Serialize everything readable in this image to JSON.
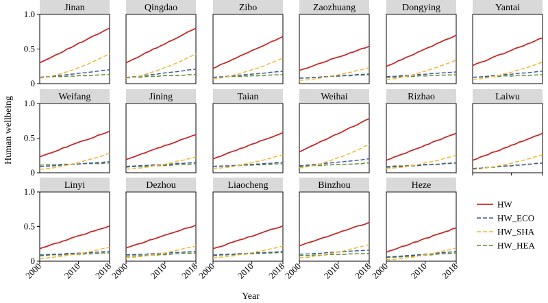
{
  "chart_data": {
    "type": "line",
    "xlabel": "Year",
    "ylabel": "Human wellbeing",
    "xlim": [
      2000,
      2018
    ],
    "ylim": [
      0,
      1.0
    ],
    "x_ticks": [
      2000,
      2010,
      2018
    ],
    "y_ticks": [
      0,
      0.5,
      1.0
    ],
    "y_tick_labels": [
      "0",
      "0.5",
      "1.0"
    ],
    "legend": {
      "placement": "bottom-right"
    },
    "series_styles": [
      {
        "name": "HW",
        "color": "#c62828",
        "dash": ""
      },
      {
        "name": "HW_ECO",
        "color": "#3b5a9d",
        "dash": "6,3"
      },
      {
        "name": "HW_SHA",
        "color": "#f2b630",
        "dash": "6,3"
      },
      {
        "name": "HW_HEA",
        "color": "#5d8a2e",
        "dash": "6,3"
      }
    ],
    "panels": [
      {
        "city": "Jinan",
        "HW": [
          0.3,
          0.8
        ],
        "HW_ECO": [
          0.09,
          0.2
        ],
        "HW_SHA": [
          0.08,
          0.43
        ],
        "HW_HEA": [
          0.09,
          0.13
        ]
      },
      {
        "city": "Qingdao",
        "HW": [
          0.3,
          0.8
        ],
        "HW_ECO": [
          0.09,
          0.21
        ],
        "HW_SHA": [
          0.08,
          0.43
        ],
        "HW_HEA": [
          0.09,
          0.13
        ]
      },
      {
        "city": "Zibo",
        "HW": [
          0.22,
          0.68
        ],
        "HW_ECO": [
          0.09,
          0.18
        ],
        "HW_SHA": [
          0.07,
          0.37
        ],
        "HW_HEA": [
          0.09,
          0.13
        ]
      },
      {
        "city": "Zaozhuang",
        "HW": [
          0.19,
          0.54
        ],
        "HW_ECO": [
          0.08,
          0.14
        ],
        "HW_SHA": [
          0.05,
          0.23
        ],
        "HW_HEA": [
          0.08,
          0.13
        ]
      },
      {
        "city": "Dongying",
        "HW": [
          0.25,
          0.7
        ],
        "HW_ECO": [
          0.1,
          0.17
        ],
        "HW_SHA": [
          0.06,
          0.34
        ],
        "HW_HEA": [
          0.09,
          0.13
        ]
      },
      {
        "city": "Yantai",
        "HW": [
          0.26,
          0.66
        ],
        "HW_ECO": [
          0.09,
          0.18
        ],
        "HW_SHA": [
          0.06,
          0.31
        ],
        "HW_HEA": [
          0.09,
          0.13
        ]
      },
      {
        "city": "Weifang",
        "HW": [
          0.23,
          0.6
        ],
        "HW_ECO": [
          0.09,
          0.16
        ],
        "HW_SHA": [
          0.05,
          0.28
        ],
        "HW_HEA": [
          0.11,
          0.14
        ]
      },
      {
        "city": "Jining",
        "HW": [
          0.19,
          0.55
        ],
        "HW_ECO": [
          0.09,
          0.15
        ],
        "HW_SHA": [
          0.05,
          0.23
        ],
        "HW_HEA": [
          0.08,
          0.13
        ]
      },
      {
        "city": "Taian",
        "HW": [
          0.2,
          0.58
        ],
        "HW_ECO": [
          0.09,
          0.15
        ],
        "HW_SHA": [
          0.06,
          0.26
        ],
        "HW_HEA": [
          0.09,
          0.13
        ]
      },
      {
        "city": "Weihai",
        "HW": [
          0.3,
          0.78
        ],
        "HW_ECO": [
          0.1,
          0.2
        ],
        "HW_SHA": [
          0.07,
          0.41
        ],
        "HW_HEA": [
          0.09,
          0.14
        ]
      },
      {
        "city": "Rizhao",
        "HW": [
          0.18,
          0.57
        ],
        "HW_ECO": [
          0.08,
          0.14
        ],
        "HW_SHA": [
          0.06,
          0.25
        ],
        "HW_HEA": [
          0.09,
          0.14
        ]
      },
      {
        "city": "Laiwu",
        "HW": [
          0.18,
          0.57
        ],
        "HW_ECO": [
          0.06,
          0.14
        ],
        "HW_SHA": [
          0.05,
          0.26
        ],
        "HW_HEA": [
          0.06,
          0.14
        ]
      },
      {
        "city": "Linyi",
        "HW": [
          0.18,
          0.51
        ],
        "HW_ECO": [
          0.09,
          0.14
        ],
        "HW_SHA": [
          0.04,
          0.2
        ],
        "HW_HEA": [
          0.08,
          0.12
        ]
      },
      {
        "city": "Dezhou",
        "HW": [
          0.19,
          0.52
        ],
        "HW_ECO": [
          0.09,
          0.14
        ],
        "HW_SHA": [
          0.05,
          0.22
        ],
        "HW_HEA": [
          0.07,
          0.12
        ]
      },
      {
        "city": "Liaocheng",
        "HW": [
          0.18,
          0.51
        ],
        "HW_ECO": [
          0.09,
          0.14
        ],
        "HW_SHA": [
          0.05,
          0.22
        ],
        "HW_HEA": [
          0.08,
          0.13
        ]
      },
      {
        "city": "Binzhou",
        "HW": [
          0.22,
          0.56
        ],
        "HW_ECO": [
          0.1,
          0.16
        ],
        "HW_SHA": [
          0.05,
          0.24
        ],
        "HW_HEA": [
          0.08,
          0.11
        ]
      },
      {
        "city": "Heze",
        "HW": [
          0.13,
          0.48
        ],
        "HW_ECO": [
          0.06,
          0.14
        ],
        "HW_SHA": [
          0.02,
          0.19
        ],
        "HW_HEA": [
          0.05,
          0.12
        ]
      }
    ]
  }
}
